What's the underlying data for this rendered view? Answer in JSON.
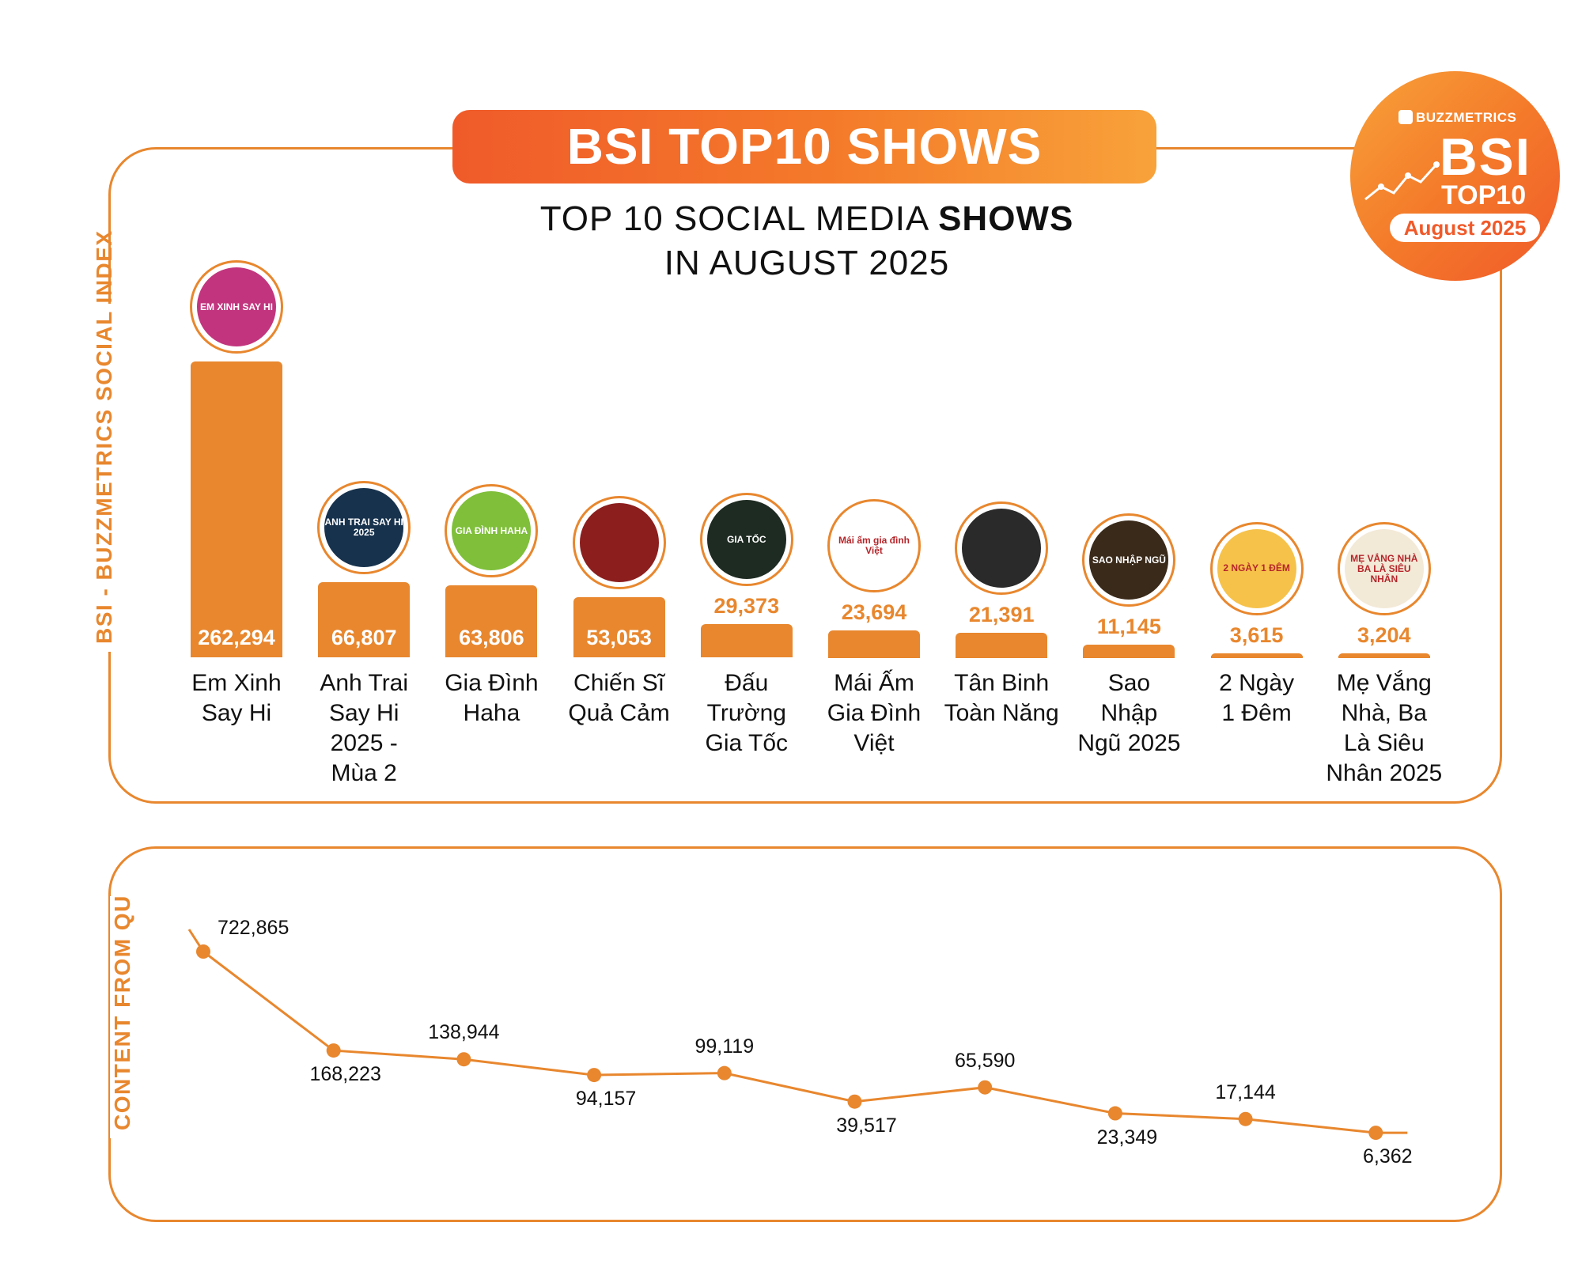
{
  "header": {
    "title": "BSI TOP10 SHOWS",
    "subtitle_line1_prefix": "TOP 10 SOCIAL MEDIA ",
    "subtitle_line1_bold": "SHOWS",
    "subtitle_line2": "IN AUGUST 2025"
  },
  "badge": {
    "brand": "BUZZMETRICS",
    "name": "BSI",
    "top": "TOP10",
    "date": "August 2025"
  },
  "colors": {
    "accent": "#E8872E",
    "gradient_start": "#F05A2A",
    "gradient_end": "#F8A23A",
    "text": "#111111"
  },
  "chart_data": [
    {
      "type": "bar",
      "ylabel": "BSI - BUZZMETRICS SOCIAL INDEX",
      "categories": [
        "Em Xinh Say Hi",
        "Anh Trai Say Hi 2025 - Mùa 2",
        "Gia Đình Haha",
        "Chiến Sĩ Quả Cảm",
        "Đấu Trường Gia Tốc",
        "Mái Ấm Gia Đình Việt",
        "Tân Binh Toàn Năng",
        "Sao Nhập Ngũ 2025",
        "2 Ngày 1 Đêm",
        "Mẹ Vắng Nhà, Ba Là Siêu Nhân 2025"
      ],
      "values": [
        262294,
        66807,
        63806,
        53053,
        29373,
        23694,
        21391,
        11145,
        3615,
        3204
      ],
      "value_labels": [
        "262,294",
        "66,807",
        "63,806",
        "53,053",
        "29,373",
        "23,694",
        "21,391",
        "11,145",
        "3,615",
        "3,204"
      ],
      "category_lines": [
        [
          "Em Xinh",
          "Say Hi"
        ],
        [
          "Anh Trai",
          "Say Hi",
          "2025 -",
          "Mùa 2"
        ],
        [
          "Gia Đình",
          "Haha"
        ],
        [
          "Chiến Sĩ",
          "Quả Cảm"
        ],
        [
          "Đấu",
          "Trường",
          "Gia Tốc"
        ],
        [
          "Mái Ấm",
          "Gia Đình",
          "Việt"
        ],
        [
          "Tân Binh",
          "Toàn Năng"
        ],
        [
          "Sao",
          "Nhập",
          "Ngũ 2025"
        ],
        [
          "2 Ngày",
          "1 Đêm"
        ],
        [
          "Mẹ Vắng",
          "Nhà, Ba",
          "Là Siêu",
          "Nhân 2025"
        ]
      ],
      "logo_icons": [
        "em-xinh-say-hi-logo",
        "anh-trai-say-hi-logo",
        "gia-dinh-haha-logo",
        "chien-si-qua-cam-logo",
        "dau-truong-gia-toc-logo",
        "mai-am-gia-dinh-viet-logo",
        "tan-binh-toan-nang-logo",
        "sao-nhap-ngu-logo",
        "2-ngay-1-dem-logo",
        "me-vang-nha-logo"
      ],
      "logo_texts": [
        "EM XINH SAY HI",
        "ANH TRAI SAY HI 2025",
        "GIA ĐÌNH HAHA",
        "",
        "GIA TỐC",
        "Mái ấm gia đình Việt",
        "",
        "SAO NHẬP NGŨ",
        "2 NGÀY 1 ĐÊM",
        "MẸ VẮNG NHÀ BA LÀ SIÊU NHÂN"
      ],
      "logo_colors": [
        "#C2357E",
        "#17324D",
        "#7FBF3A",
        "#8C1E1E",
        "#1E2B22",
        "#FFFFFF",
        "#2A2A2A",
        "#3A2A1A",
        "#F6C24A",
        "#F3E9D7"
      ]
    },
    {
      "type": "line",
      "ylabel": "CONTENT FROM QU",
      "values": [
        722865,
        168223,
        138944,
        94157,
        99119,
        39517,
        65590,
        23349,
        17144,
        6362
      ],
      "value_labels": [
        "722,865",
        "168,223",
        "138,944",
        "94,157",
        "99,119",
        "39,517",
        "65,590",
        "23,349",
        "17,144",
        "6,362"
      ],
      "label_positions": [
        "right",
        "below",
        "above",
        "below",
        "above",
        "below",
        "above",
        "below",
        "above",
        "below"
      ]
    }
  ]
}
